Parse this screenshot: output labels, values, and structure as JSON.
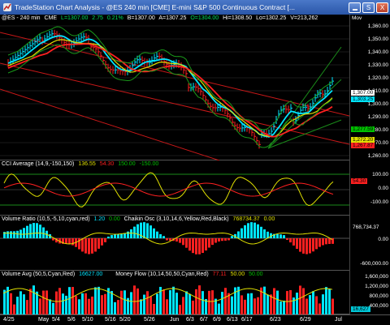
{
  "window": {
    "title": "TradeStation Chart Analysis - @ES 240 min [CME] E-mini S&P 500 Continuous Contract [...",
    "min_icon": "minimize-icon",
    "max_label": "S",
    "close_label": "X"
  },
  "price_pane": {
    "symbol": "@ES - 240 min",
    "exchange": "CME",
    "last": "L=1307.00",
    "change": "2.75",
    "pct": "0.21%",
    "bid": "B=1307.00",
    "ask": "A=1307.25",
    "open": "O=1304.00",
    "high": "Hi=1308.50",
    "low": "Lo=1302.25",
    "volume": "V=213,262",
    "more": "Mov",
    "ticks": [
      "1,360.00",
      "1,350.00",
      "1,340.00",
      "1,330.00",
      "1,320.00",
      "1,310.00",
      "1,300.00",
      "1,290.00",
      "1,280.00",
      "1,270.00",
      "1,260.00"
    ],
    "tags": [
      {
        "label": "1,307.00",
        "bg": "#ffffff",
        "fg": "#000000"
      },
      {
        "label": "1,303.25",
        "bg": "#00e5ff",
        "fg": "#000000"
      },
      {
        "label": "1,277.59",
        "bg": "#00c000",
        "fg": "#000000"
      },
      {
        "label": "1,272.20",
        "bg": "#e0e000",
        "fg": "#000000"
      },
      {
        "label": "1,267.87",
        "bg": "#ff2020",
        "fg": "#000000"
      }
    ]
  },
  "cci_pane": {
    "name": "CCI Average (14,9,-150,150)",
    "v1": "136.55",
    "v2": "54.30",
    "v3": "150.00",
    "v4": "-150.00",
    "ticks": [
      "100.00",
      "0.00",
      "-100.00"
    ],
    "tags": [
      {
        "label": "54.30",
        "bg": "#ff2020",
        "fg": "#000"
      }
    ]
  },
  "vr_pane": {
    "name": "Volume Ratio (10,5,-5,10,cyan,red)",
    "v1": "1.20",
    "v2": "0.00",
    "chaikin_name": "Chaikin Osc (3,10,14,6,Yellow,Red,Black)",
    "chaikin_v1": "768734.37",
    "chaikin_v2": "0.00",
    "ticks": [
      "0.00",
      "-600,000.00"
    ],
    "tags": [
      {
        "label": "768,734.37",
        "bg": "#000",
        "fg": "#fff"
      }
    ]
  },
  "vol_pane": {
    "name": "Volume Avg (50,5,Cyan,Red)",
    "v1": "16627.00",
    "mf_name": "Money Flow (10,14,50,50,Cyan,Red)",
    "mf_v1": "77.11",
    "mf_v2": "50.00",
    "mf_v3": "50.00",
    "ticks": [
      "1,600,000",
      "1,200,000",
      "800,000",
      "400,000"
    ],
    "tags": [
      {
        "label": "16,627",
        "bg": "#00c8d8",
        "fg": "#000"
      }
    ]
  },
  "date_axis": [
    "4/25",
    "May",
    "5/4",
    "5/6",
    "5/10",
    "5/16",
    "5/20",
    "5/26",
    "Jun",
    "6/3",
    "6/7",
    "6/9",
    "6/13",
    "6/17",
    "6/23",
    "6/29",
    "Jul"
  ],
  "colors": {
    "cyan": "#00e5ff",
    "red": "#ff2020",
    "yellow": "#e0e000",
    "green": "#00c000",
    "bar_up": "#00e5ff",
    "bar_dn": "#ff2020"
  }
}
